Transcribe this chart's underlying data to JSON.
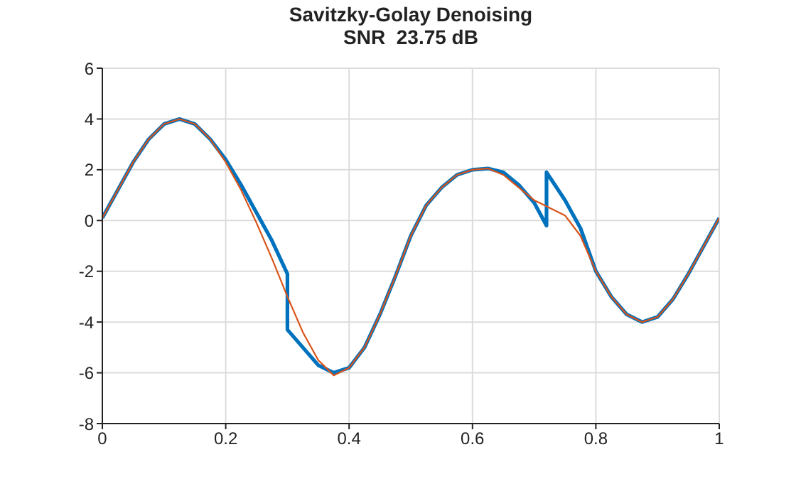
{
  "chart_data": {
    "type": "line",
    "title": "Savitzky-Golay Denoising",
    "subtitle": "SNR  23.75 dB",
    "xlim": [
      0,
      1
    ],
    "xticks": [
      0,
      0.2,
      0.4,
      0.6,
      0.8,
      1
    ],
    "ylim": [
      -8,
      6
    ],
    "yticks": [
      -8,
      -6,
      -4,
      -2,
      0,
      2,
      4,
      6
    ],
    "grid": true,
    "line_style": "solid",
    "marker": "none",
    "series": [
      {
        "color": "#0072bd",
        "x": [
          0,
          0.025,
          0.05,
          0.075,
          0.1,
          0.125,
          0.15,
          0.175,
          0.2,
          0.225,
          0.25,
          0.275,
          0.3,
          0.3,
          0.325,
          0.35,
          0.375,
          0.4,
          0.425,
          0.45,
          0.475,
          0.5,
          0.525,
          0.55,
          0.575,
          0.6,
          0.625,
          0.65,
          0.675,
          0.7,
          0.72,
          0.72,
          0.75,
          0.775,
          0.8,
          0.825,
          0.85,
          0.875,
          0.9,
          0.925,
          0.95,
          0.975,
          1
        ],
        "values": [
          0.1,
          1.2,
          2.3,
          3.2,
          3.8,
          4.0,
          3.8,
          3.2,
          2.4,
          1.4,
          0.3,
          -0.8,
          -2.1,
          -4.3,
          -5.0,
          -5.7,
          -6.0,
          -5.8,
          -5.0,
          -3.7,
          -2.2,
          -0.6,
          0.6,
          1.3,
          1.8,
          2.0,
          2.05,
          1.9,
          1.4,
          0.7,
          -0.2,
          1.9,
          0.8,
          -0.3,
          -2.0,
          -3.0,
          -3.7,
          -4.0,
          -3.8,
          -3.1,
          -2.1,
          -1.0,
          0.1
        ]
      },
      {
        "color": "#d95319",
        "x": [
          0,
          0.025,
          0.05,
          0.075,
          0.1,
          0.125,
          0.15,
          0.175,
          0.2,
          0.225,
          0.25,
          0.275,
          0.3,
          0.325,
          0.35,
          0.375,
          0.4,
          0.425,
          0.45,
          0.475,
          0.5,
          0.525,
          0.55,
          0.575,
          0.6,
          0.625,
          0.65,
          0.675,
          0.7,
          0.725,
          0.75,
          0.775,
          0.8,
          0.825,
          0.85,
          0.875,
          0.9,
          0.925,
          0.95,
          0.975,
          1
        ],
        "values": [
          0.1,
          1.2,
          2.3,
          3.2,
          3.8,
          4.0,
          3.8,
          3.2,
          2.3,
          1.2,
          -0.1,
          -1.5,
          -3.0,
          -4.4,
          -5.5,
          -6.1,
          -5.8,
          -5.0,
          -3.7,
          -2.2,
          -0.6,
          0.6,
          1.3,
          1.8,
          2.0,
          2.05,
          1.8,
          1.3,
          0.8,
          0.5,
          0.2,
          -0.6,
          -2.0,
          -3.0,
          -3.7,
          -4.0,
          -3.8,
          -3.1,
          -2.1,
          -1.0,
          0.1
        ]
      }
    ]
  }
}
